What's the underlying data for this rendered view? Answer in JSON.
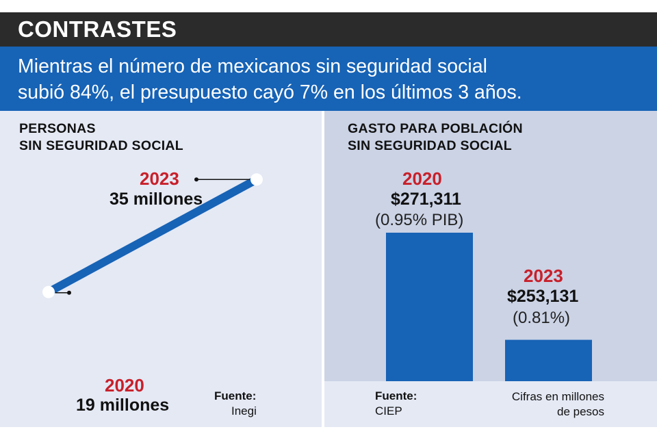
{
  "header": {
    "title": "CONTRASTES"
  },
  "subtitle": {
    "line1": "Mientras el número de mexicanos sin seguridad social",
    "line2": "subió 84%, el presupuesto cayó 7% en los últimos 3 años."
  },
  "left_panel": {
    "heading_line1": "PERSONAS",
    "heading_line2": "SIN SEGURIDAD SOCIAL",
    "source_label": "Fuente:",
    "source_value": "Inegi"
  },
  "right_panel": {
    "heading_line1": "GASTO PARA POBLACIÓN",
    "heading_line2": "SIN SEGURIDAD SOCIAL",
    "source_label": "Fuente:",
    "source_value": "CIEP",
    "note_line1": "Cifras en millones",
    "note_line2": "de pesos"
  },
  "colors": {
    "header_bg": "#2b2b2b",
    "banner_bg": "#1763b6",
    "bar": "#1763b6",
    "year_red": "#c8202a",
    "panel_left_bg": "#e4e9f4",
    "panel_right_bg": "#cbd3e5"
  },
  "chart_data": [
    {
      "type": "line",
      "title": "PERSONAS SIN SEGURIDAD SOCIAL",
      "x": [
        "2020",
        "2023"
      ],
      "y": [
        19,
        35
      ],
      "unit": "millones",
      "value_labels": [
        "19 millones",
        "35 millones"
      ],
      "year_labels": [
        "2020",
        "2023"
      ],
      "source": "Inegi"
    },
    {
      "type": "bar",
      "title": "GASTO PARA POBLACIÓN SIN SEGURIDAD SOCIAL",
      "categories": [
        "2020",
        "2023"
      ],
      "values": [
        271311,
        253131
      ],
      "value_labels": [
        "$271,311",
        "$253,131"
      ],
      "pib_labels": [
        "(0.95% PIB)",
        "(0.81%)"
      ],
      "unit": "millones de pesos",
      "source": "CIEP"
    }
  ]
}
